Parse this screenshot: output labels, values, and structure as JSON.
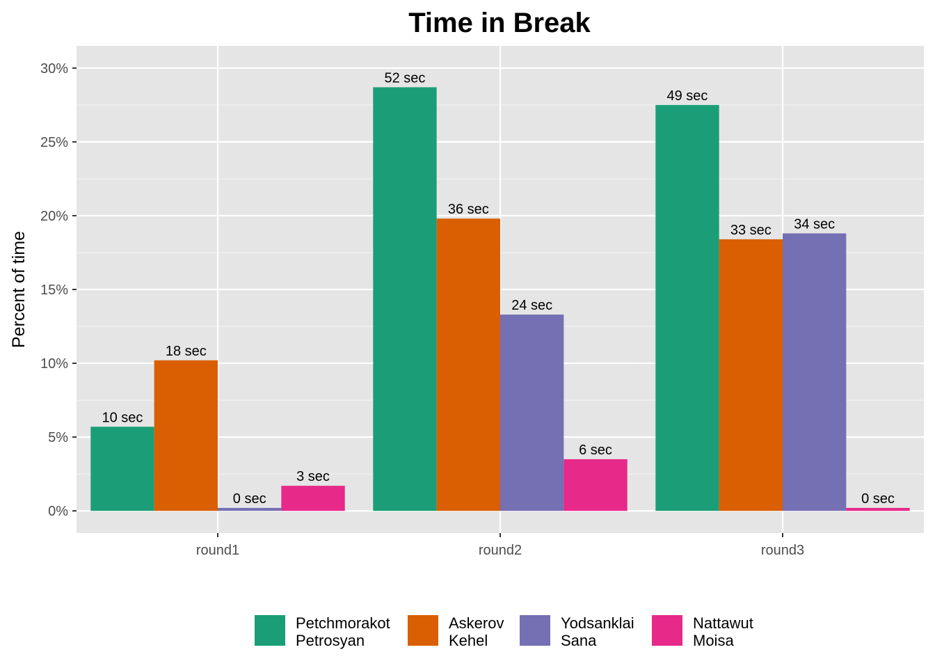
{
  "chart_data": {
    "type": "bar",
    "title": "Time in Break",
    "xlabel": "",
    "ylabel": "Percent of time",
    "categories": [
      "round1",
      "round2",
      "round3"
    ],
    "ylim": [
      -1.5,
      31.5
    ],
    "yticks": [
      0,
      5,
      10,
      15,
      20,
      25,
      30
    ],
    "ytick_labels": [
      "0%",
      "5%",
      "10%",
      "15%",
      "20%",
      "25%",
      "30%"
    ],
    "grid": true,
    "legend_position": "bottom",
    "series": [
      {
        "name": [
          "Petchmorakot",
          "Petrosyan"
        ],
        "color": "#1b9e77",
        "values": [
          5.7,
          28.7,
          27.5
        ],
        "labels": [
          "10 sec",
          "52 sec",
          "49 sec"
        ]
      },
      {
        "name": [
          "Askerov",
          "Kehel"
        ],
        "color": "#d95f02",
        "values": [
          10.2,
          19.8,
          18.4
        ],
        "labels": [
          "18 sec",
          "36 sec",
          "33 sec"
        ]
      },
      {
        "name": [
          "Yodsanklai",
          "Sana"
        ],
        "color": "#7570b3",
        "values": [
          0.2,
          13.3,
          18.8
        ],
        "labels": [
          "0 sec",
          "24 sec",
          "34 sec"
        ]
      },
      {
        "name": [
          "Nattawut",
          "Moisa"
        ],
        "color": "#e7298a",
        "values": [
          1.7,
          3.5,
          0.2
        ],
        "labels": [
          "3 sec",
          "6 sec",
          "0 sec"
        ]
      }
    ]
  }
}
